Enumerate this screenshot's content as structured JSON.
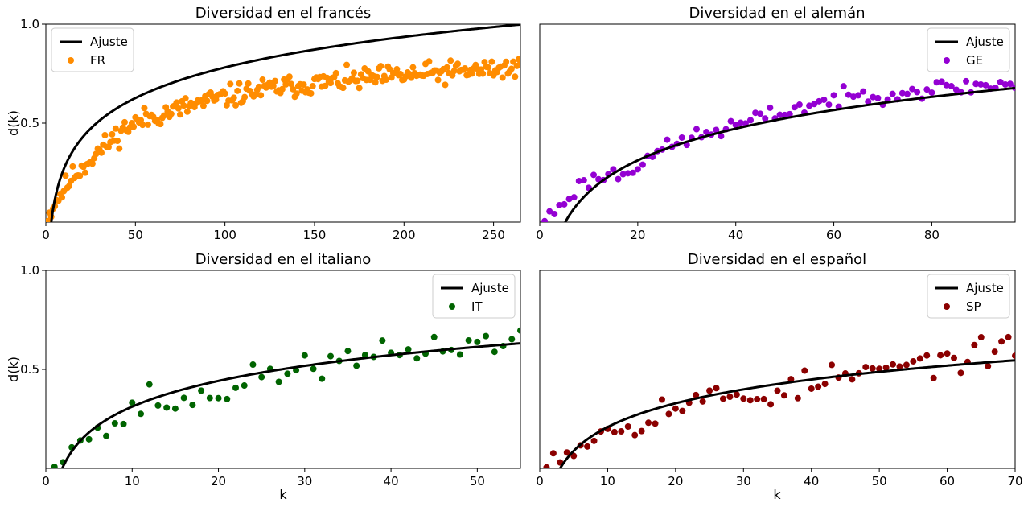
{
  "chart_data": [
    {
      "type": "scatter",
      "title": "Diversidad en el francés",
      "xlabel": "",
      "ylabel": "d(k)",
      "xlim": [
        0,
        265
      ],
      "ylim": [
        0,
        1.0
      ],
      "xticks": [
        0,
        50,
        100,
        150,
        200,
        250
      ],
      "xtick_labels": [
        "0",
        "50",
        "100",
        "150",
        "200",
        "250"
      ],
      "yticks": [
        0.5,
        1.0
      ],
      "ytick_labels": [
        "0.5",
        "1.0"
      ],
      "legend_position": "top-left",
      "fit": {
        "name": "Ajuste",
        "color": "#000000",
        "a": 0.2228,
        "x0": 3,
        "xend": 265
      },
      "series": [
        {
          "name": "FR",
          "color": "#ff8c00",
          "n": 265,
          "xstart": 1,
          "xstep": 1,
          "noise": 0.028,
          "seed": 11,
          "points": [
            [
              1,
              0.02
            ],
            [
              2,
              0.04
            ],
            [
              4,
              0.08
            ],
            [
              8,
              0.14
            ],
            [
              15,
              0.23
            ],
            [
              25,
              0.32
            ],
            [
              35,
              0.4
            ],
            [
              45,
              0.48
            ],
            [
              55,
              0.52
            ],
            [
              70,
              0.56
            ],
            [
              90,
              0.61
            ],
            [
              110,
              0.65
            ],
            [
              130,
              0.68
            ],
            [
              150,
              0.7
            ],
            [
              175,
              0.72
            ],
            [
              200,
              0.74
            ],
            [
              230,
              0.76
            ],
            [
              265,
              0.78
            ]
          ]
        }
      ]
    },
    {
      "type": "scatter",
      "title": "Diversidad en el alemán",
      "xlabel": "",
      "ylabel": "",
      "xlim": [
        0,
        97
      ],
      "ylim": [
        0,
        1.0
      ],
      "xticks": [
        0,
        20,
        40,
        60,
        80
      ],
      "xtick_labels": [
        "0",
        "20",
        "40",
        "60",
        "80"
      ],
      "yticks": [],
      "ytick_labels": [],
      "legend_position": "top-right",
      "fit": {
        "name": "Ajuste",
        "color": "#000000",
        "a": 0.2315,
        "x0": 5.2,
        "xend": 97
      },
      "series": [
        {
          "name": "GE",
          "color": "#9400d3",
          "n": 97,
          "xstart": 1,
          "xstep": 1,
          "noise": 0.022,
          "seed": 23,
          "points": [
            [
              1,
              0.01
            ],
            [
              2,
              0.03
            ],
            [
              4,
              0.08
            ],
            [
              7,
              0.16
            ],
            [
              10,
              0.21
            ],
            [
              14,
              0.24
            ],
            [
              18,
              0.25
            ],
            [
              22,
              0.34
            ],
            [
              26,
              0.37
            ],
            [
              30,
              0.42
            ],
            [
              36,
              0.46
            ],
            [
              42,
              0.5
            ],
            [
              50,
              0.56
            ],
            [
              58,
              0.61
            ],
            [
              66,
              0.64
            ],
            [
              74,
              0.66
            ],
            [
              84,
              0.68
            ],
            [
              97,
              0.7
            ]
          ]
        }
      ]
    },
    {
      "type": "scatter",
      "title": "Diversidad en el italiano",
      "xlabel": "k",
      "ylabel": "d(k)",
      "xlim": [
        0,
        55
      ],
      "ylim": [
        0,
        1.0
      ],
      "xticks": [
        0,
        10,
        20,
        30,
        40,
        50
      ],
      "xtick_labels": [
        "0",
        "10",
        "20",
        "30",
        "40",
        "50"
      ],
      "yticks": [
        0.5,
        1.0
      ],
      "ytick_labels": [
        "0.5",
        "1.0"
      ],
      "legend_position": "top-right",
      "fit": {
        "name": "Ajuste",
        "color": "#000000",
        "a": 0.1877,
        "x0": 1.9,
        "xend": 55
      },
      "series": [
        {
          "name": "IT",
          "color": "#006400",
          "n": 55,
          "xstart": 1,
          "xstep": 1,
          "noise": 0.035,
          "seed": 37,
          "points": [
            [
              1,
              0.04
            ],
            [
              2,
              0.11
            ],
            [
              3,
              0.13
            ],
            [
              4,
              0.15
            ],
            [
              6,
              0.17
            ],
            [
              8,
              0.23
            ],
            [
              10,
              0.27
            ],
            [
              12,
              0.37
            ],
            [
              14,
              0.32
            ],
            [
              18,
              0.35
            ],
            [
              22,
              0.42
            ],
            [
              26,
              0.47
            ],
            [
              30,
              0.53
            ],
            [
              34,
              0.52
            ],
            [
              38,
              0.56
            ],
            [
              42,
              0.59
            ],
            [
              46,
              0.62
            ],
            [
              50,
              0.63
            ],
            [
              55,
              0.65
            ]
          ]
        }
      ]
    },
    {
      "type": "scatter",
      "title": "Diversidad en el español",
      "xlabel": "k",
      "ylabel": "",
      "xlim": [
        0,
        70
      ],
      "ylim": [
        0,
        1.0
      ],
      "xticks": [
        0,
        10,
        20,
        30,
        40,
        50,
        60,
        70
      ],
      "xtick_labels": [
        "0",
        "10",
        "20",
        "30",
        "40",
        "50",
        "60",
        "70"
      ],
      "yticks": [],
      "ytick_labels": [],
      "legend_position": "top-right",
      "fit": {
        "name": "Ajuste",
        "color": "#000000",
        "a": 0.1733,
        "x0": 3.0,
        "xend": 70
      },
      "series": [
        {
          "name": "SP",
          "color": "#8b0000",
          "n": 70,
          "xstart": 1,
          "xstep": 1,
          "noise": 0.035,
          "seed": 53,
          "points": [
            [
              1,
              0.02
            ],
            [
              2,
              0.07
            ],
            [
              4,
              0.08
            ],
            [
              6,
              0.14
            ],
            [
              8,
              0.15
            ],
            [
              10,
              0.2
            ],
            [
              14,
              0.23
            ],
            [
              18,
              0.3
            ],
            [
              22,
              0.33
            ],
            [
              26,
              0.36
            ],
            [
              30,
              0.36
            ],
            [
              34,
              0.38
            ],
            [
              38,
              0.41
            ],
            [
              42,
              0.45
            ],
            [
              46,
              0.47
            ],
            [
              50,
              0.49
            ],
            [
              54,
              0.52
            ],
            [
              58,
              0.54
            ],
            [
              62,
              0.56
            ],
            [
              66,
              0.58
            ],
            [
              70,
              0.6
            ]
          ]
        }
      ]
    }
  ]
}
